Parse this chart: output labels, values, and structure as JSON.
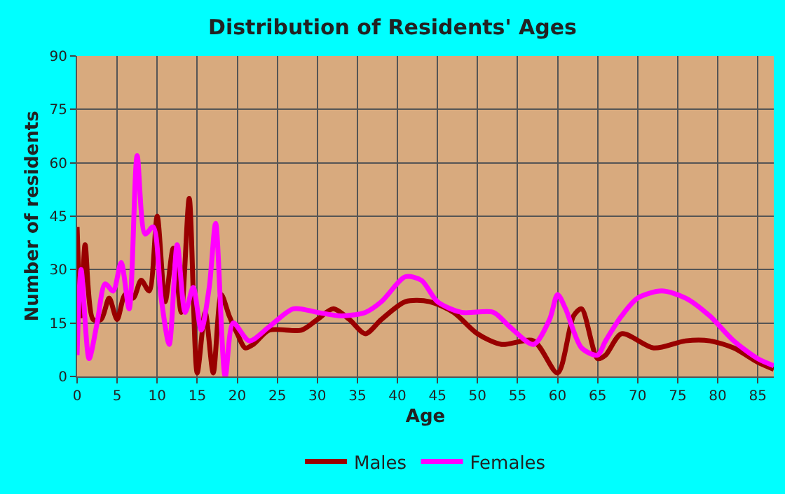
{
  "chart_data": {
    "type": "line",
    "title": "Distribution of Residents' Ages",
    "xlabel": "Age",
    "ylabel": "Number of residents",
    "xlim": [
      0,
      87
    ],
    "xticks": [
      0,
      5,
      10,
      15,
      20,
      25,
      30,
      35,
      40,
      45,
      50,
      55,
      60,
      65,
      70,
      75,
      80,
      85
    ],
    "ylim": [
      0,
      90
    ],
    "yticks": [
      0,
      15,
      30,
      45,
      60,
      75,
      90
    ],
    "grid": true,
    "legend": "bottom",
    "series": [
      {
        "name": "Males",
        "color": "#990000",
        "x": [
          0,
          0.5,
          1,
          2,
          3,
          4,
          5,
          6,
          7,
          8,
          9,
          10,
          11,
          12,
          13,
          14,
          15,
          16,
          17,
          18,
          19,
          20,
          21,
          22,
          24,
          28,
          30,
          32,
          34,
          36,
          38,
          41,
          44,
          47,
          50,
          53,
          57,
          60,
          62,
          63,
          65,
          66,
          68,
          72,
          76,
          79,
          82,
          85,
          87
        ],
        "values": [
          42,
          17,
          37,
          16,
          16,
          22,
          16,
          23,
          22,
          27,
          24,
          45,
          21,
          36,
          18,
          50,
          1,
          18,
          1,
          23,
          17,
          12,
          8,
          9,
          13,
          13,
          16,
          19,
          16,
          12,
          16,
          21,
          21,
          18,
          12,
          9,
          10,
          1,
          17,
          19,
          5,
          6,
          12,
          8,
          10,
          10,
          8,
          4,
          2
        ]
      },
      {
        "name": "Females",
        "color": "#ff00ff",
        "x": [
          0,
          0.5,
          1.5,
          2.5,
          3.5,
          4.5,
          5.5,
          6.5,
          7.5,
          8.5,
          9.5,
          10.5,
          11.5,
          12.5,
          13.5,
          14.5,
          15.5,
          16.5,
          17.3,
          18.5,
          19.5,
          21.5,
          24,
          27,
          30,
          33,
          36,
          38,
          41,
          43,
          45,
          48,
          52,
          54,
          57,
          59,
          60,
          61,
          63,
          65,
          66,
          68,
          70,
          73,
          76,
          79,
          82,
          85,
          87
        ],
        "values": [
          6,
          30,
          5,
          15,
          26,
          24,
          32,
          19,
          62,
          40,
          42,
          22,
          9,
          37,
          18,
          25,
          13,
          25,
          43,
          0,
          15,
          10,
          14,
          19,
          18,
          17,
          18,
          21,
          28,
          27,
          21,
          18,
          18,
          14,
          9,
          16,
          23,
          19,
          8,
          6,
          10,
          17,
          22,
          24,
          22,
          17,
          10,
          5,
          3
        ]
      }
    ]
  }
}
